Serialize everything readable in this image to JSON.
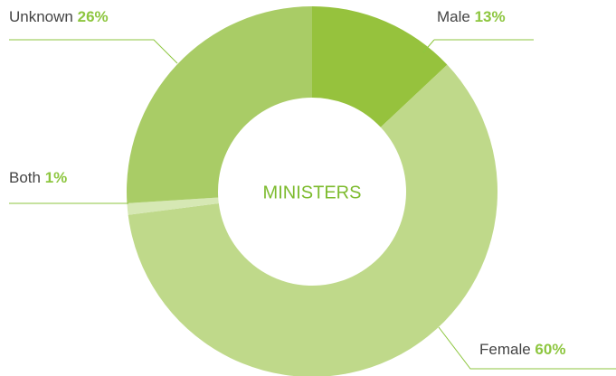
{
  "chart_data": {
    "type": "donut",
    "center_label": "MINISTERS",
    "categories": [
      "Male",
      "Female",
      "Both",
      "Unknown"
    ],
    "values": [
      13,
      60,
      1,
      26
    ],
    "value_labels": [
      "13%",
      "60%",
      "1%",
      "26%"
    ],
    "colors": [
      "#96c23d",
      "#bfd98a",
      "#d6e8b4",
      "#a9cc66"
    ]
  }
}
